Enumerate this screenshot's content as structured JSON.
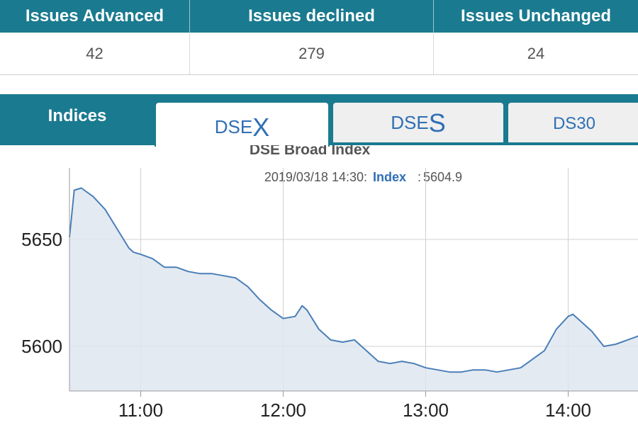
{
  "stats": {
    "headers": [
      "Issues Advanced",
      "Issues declined",
      "Issues Unchanged"
    ],
    "values": [
      "42",
      "279",
      "24"
    ]
  },
  "tabs": {
    "section_label": "Indices",
    "items": [
      {
        "prefix": "DSE",
        "suffix": "X",
        "active": true
      },
      {
        "prefix": "DSE",
        "suffix": "S",
        "active": false
      },
      {
        "prefix": "DS30",
        "suffix": "",
        "active": false
      }
    ]
  },
  "colors": {
    "brand": "#1a7a8f",
    "line": "#4a7fb8",
    "fill": "#dfe6f0",
    "tab_text": "#2f6fb5"
  },
  "chart_data": {
    "type": "area",
    "title": "DSE Broad Index",
    "tooltip": {
      "date": "2019/03/18 14:30:",
      "key": "Index",
      "value": "5604.9"
    },
    "xlabel": "",
    "ylabel": "",
    "x_ticks": [
      "11:00",
      "12:00",
      "13:00",
      "14:00"
    ],
    "y_ticks": [
      5600,
      5650
    ],
    "ylim": [
      5580,
      5690
    ],
    "xlim": [
      "10:30",
      "14:30"
    ],
    "grid": true,
    "series": [
      {
        "x": [
          "10:30",
          "10:32",
          "10:35",
          "10:40",
          "10:45",
          "10:50",
          "10:55",
          "10:57",
          "11:00",
          "11:05",
          "11:10",
          "11:15",
          "11:20",
          "11:25",
          "11:30",
          "11:35",
          "11:40",
          "11:45",
          "11:50",
          "11:55",
          "12:00",
          "12:05",
          "12:08",
          "12:10",
          "12:15",
          "12:20",
          "12:25",
          "12:30",
          "12:35",
          "12:40",
          "12:45",
          "12:50",
          "12:55",
          "13:00",
          "13:05",
          "13:10",
          "13:15",
          "13:20",
          "13:25",
          "13:30",
          "13:35",
          "13:40",
          "13:45",
          "13:50",
          "13:55",
          "14:00",
          "14:02",
          "14:05",
          "14:10",
          "14:15",
          "14:20",
          "14:25",
          "14:30"
        ],
        "y": [
          5651,
          5673,
          5674,
          5670,
          5664,
          5655,
          5646,
          5644,
          5643,
          5641,
          5637,
          5637,
          5635,
          5634,
          5634,
          5633,
          5632,
          5628,
          5622,
          5617,
          5613,
          5614,
          5619,
          5617,
          5608,
          5603,
          5602,
          5603,
          5598,
          5593,
          5592,
          5593,
          5592,
          5590,
          5589,
          5588,
          5588,
          5589,
          5589,
          5588,
          5589,
          5590,
          5594,
          5598,
          5608,
          5614,
          5615,
          5612,
          5607,
          5600,
          5601,
          5603,
          5605
        ]
      }
    ]
  }
}
